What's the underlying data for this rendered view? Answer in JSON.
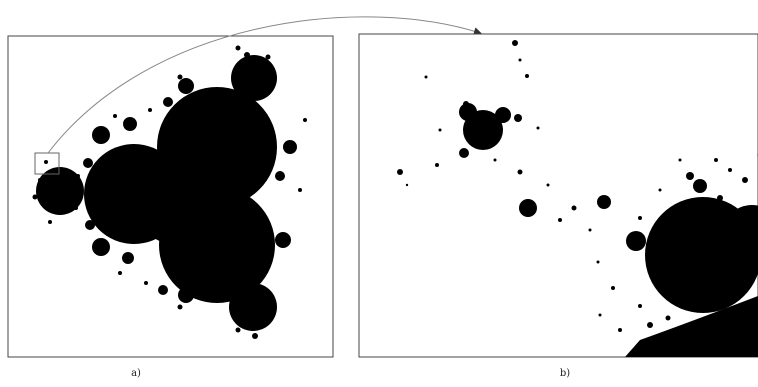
{
  "panels": [
    {
      "label": "a)",
      "content": "multibrot-set-overview"
    },
    {
      "label": "b)",
      "content": "multibrot-set-zoomed-detail"
    }
  ],
  "colors": {
    "fractal": "#000000",
    "background": "#ffffff",
    "frame": "#444444",
    "connector": "#888888"
  }
}
